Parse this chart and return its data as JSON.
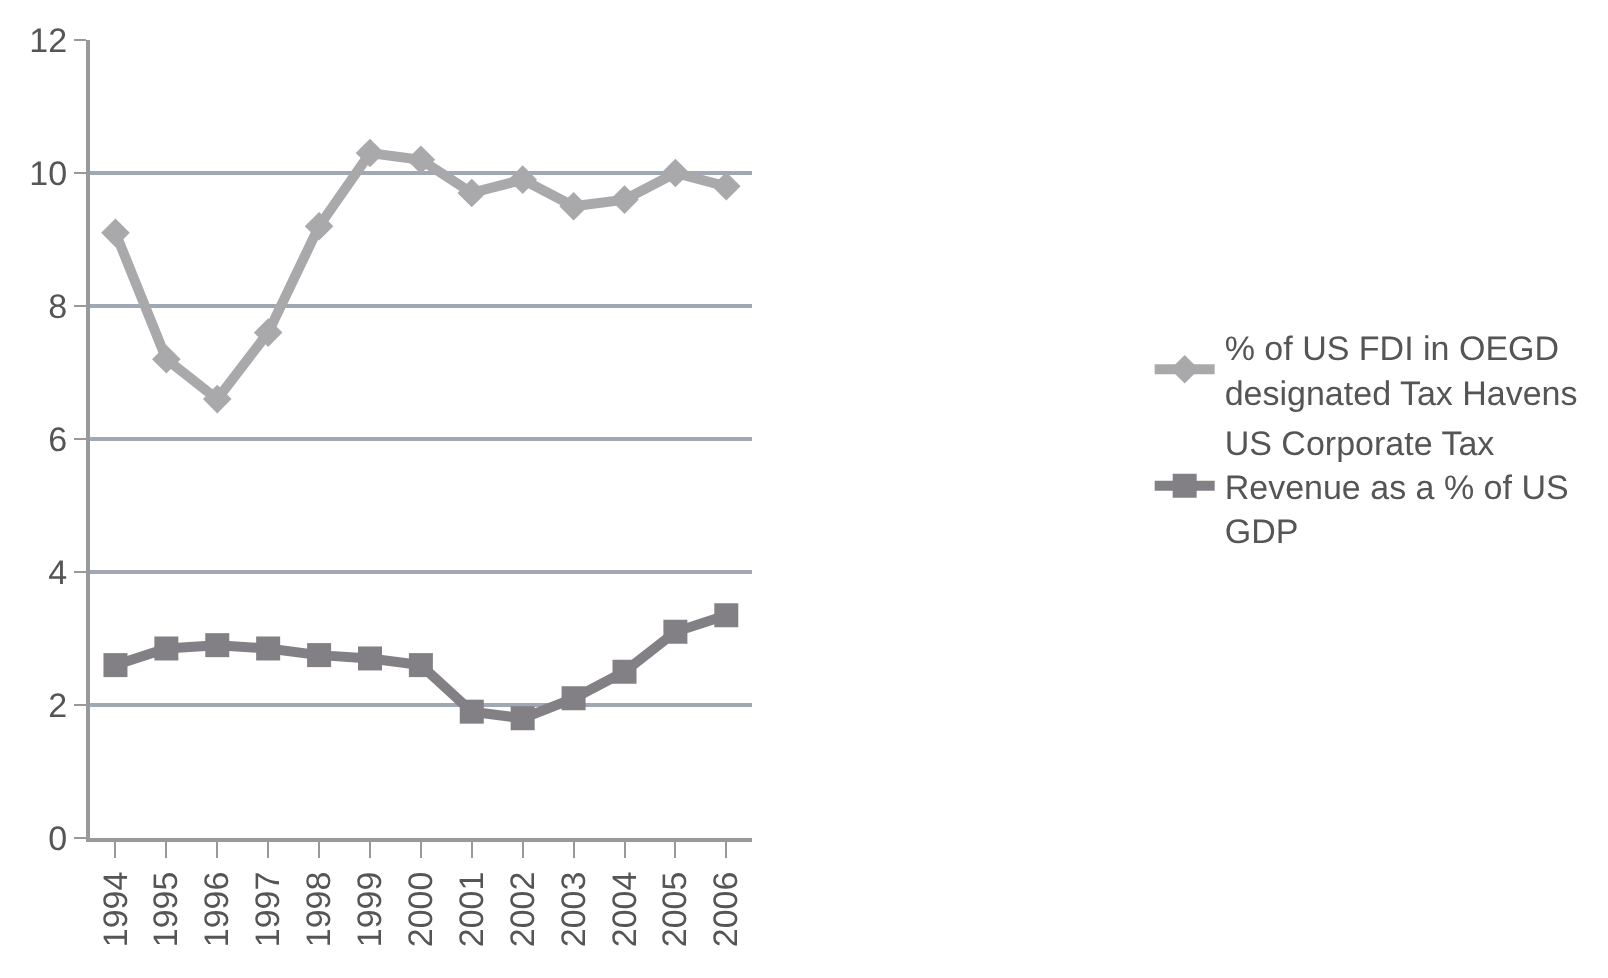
{
  "chart_data": {
    "type": "line",
    "categories": [
      "1994",
      "1995",
      "1996",
      "1997",
      "1998",
      "1999",
      "2000",
      "2001",
      "2002",
      "2003",
      "2004",
      "2005",
      "2006"
    ],
    "series": [
      {
        "name": "% of US FDI in OEGD designated Tax Havens",
        "color": "#a9a9ab",
        "marker": "diamond",
        "values": [
          9.1,
          7.2,
          6.6,
          7.6,
          9.2,
          10.3,
          10.2,
          9.7,
          9.9,
          9.5,
          9.6,
          10.0,
          9.8
        ]
      },
      {
        "name": "US Corporate Tax Revenue as a % of US GDP",
        "color": "#828084",
        "marker": "square",
        "values": [
          2.6,
          2.85,
          2.9,
          2.85,
          2.75,
          2.7,
          2.6,
          1.9,
          1.8,
          2.1,
          2.5,
          3.1,
          3.35
        ]
      }
    ],
    "ylim": [
      0,
      12
    ],
    "yticks": [
      0,
      2,
      4,
      6,
      8,
      10,
      12
    ],
    "grid": "y",
    "legend": "right",
    "line_style": "solid"
  }
}
